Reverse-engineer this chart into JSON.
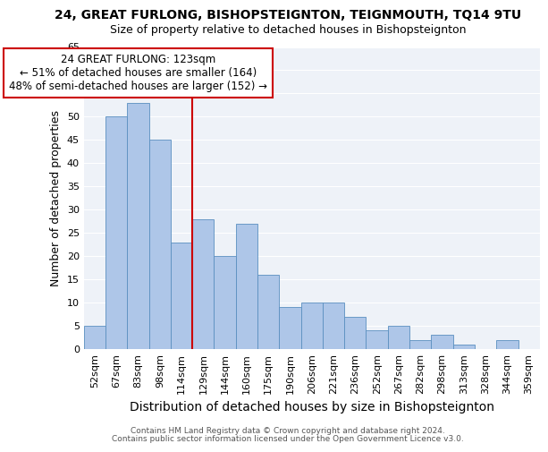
{
  "title": "24, GREAT FURLONG, BISHOPSTEIGNTON, TEIGNMOUTH, TQ14 9TU",
  "subtitle": "Size of property relative to detached houses in Bishopsteignton",
  "xlabel": "Distribution of detached houses by size in Bishopsteignton",
  "ylabel": "Number of detached properties",
  "categories": [
    "52sqm",
    "67sqm",
    "83sqm",
    "98sqm",
    "114sqm",
    "129sqm",
    "144sqm",
    "160sqm",
    "175sqm",
    "190sqm",
    "206sqm",
    "221sqm",
    "236sqm",
    "252sqm",
    "267sqm",
    "282sqm",
    "298sqm",
    "313sqm",
    "328sqm",
    "344sqm",
    "359sqm"
  ],
  "values": [
    5,
    50,
    53,
    45,
    23,
    28,
    20,
    27,
    16,
    9,
    10,
    10,
    7,
    4,
    5,
    2,
    3,
    1,
    0,
    2,
    0
  ],
  "bar_color": "#aec6e8",
  "bar_edge_color": "#5a8fc0",
  "vline_x": 4.5,
  "vline_color": "#cc0000",
  "annotation_text": "24 GREAT FURLONG: 123sqm\n← 51% of detached houses are smaller (164)\n48% of semi-detached houses are larger (152) →",
  "annotation_box_color": "#ffffff",
  "annotation_box_edge": "#cc0000",
  "ylim": [
    0,
    65
  ],
  "yticks": [
    0,
    5,
    10,
    15,
    20,
    25,
    30,
    35,
    40,
    45,
    50,
    55,
    60,
    65
  ],
  "footnote1": "Contains HM Land Registry data © Crown copyright and database right 2024.",
  "footnote2": "Contains public sector information licensed under the Open Government Licence v3.0.",
  "bg_color": "#eef2f8",
  "grid_color": "#ffffff",
  "title_fontsize": 10,
  "subtitle_fontsize": 9,
  "xlabel_fontsize": 10,
  "ylabel_fontsize": 9,
  "tick_fontsize": 8,
  "annotation_fontsize": 8.5
}
